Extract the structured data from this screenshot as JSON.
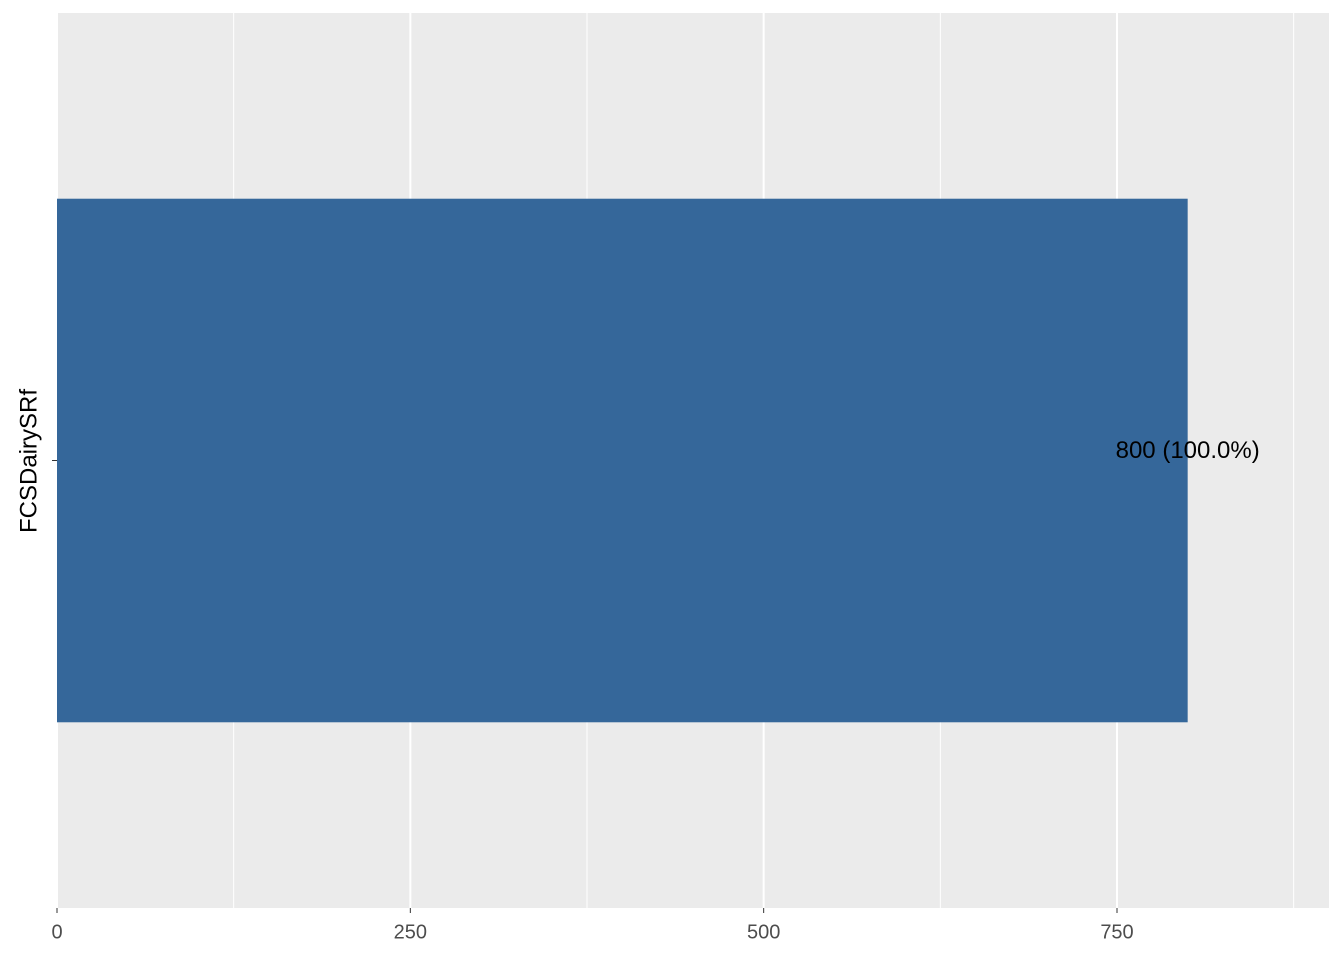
{
  "chart_data": {
    "type": "bar",
    "orientation": "horizontal",
    "ylabel": "FCSDairySRf",
    "categories": [
      null
    ],
    "values": [
      800
    ],
    "value_labels": [
      "800 (100.0%)"
    ],
    "color": "#35679a",
    "xlim": [
      0,
      900
    ],
    "xticks": [
      0,
      250,
      500,
      750
    ],
    "minor_xticks": [
      125,
      375,
      625,
      875
    ],
    "grid": true
  }
}
